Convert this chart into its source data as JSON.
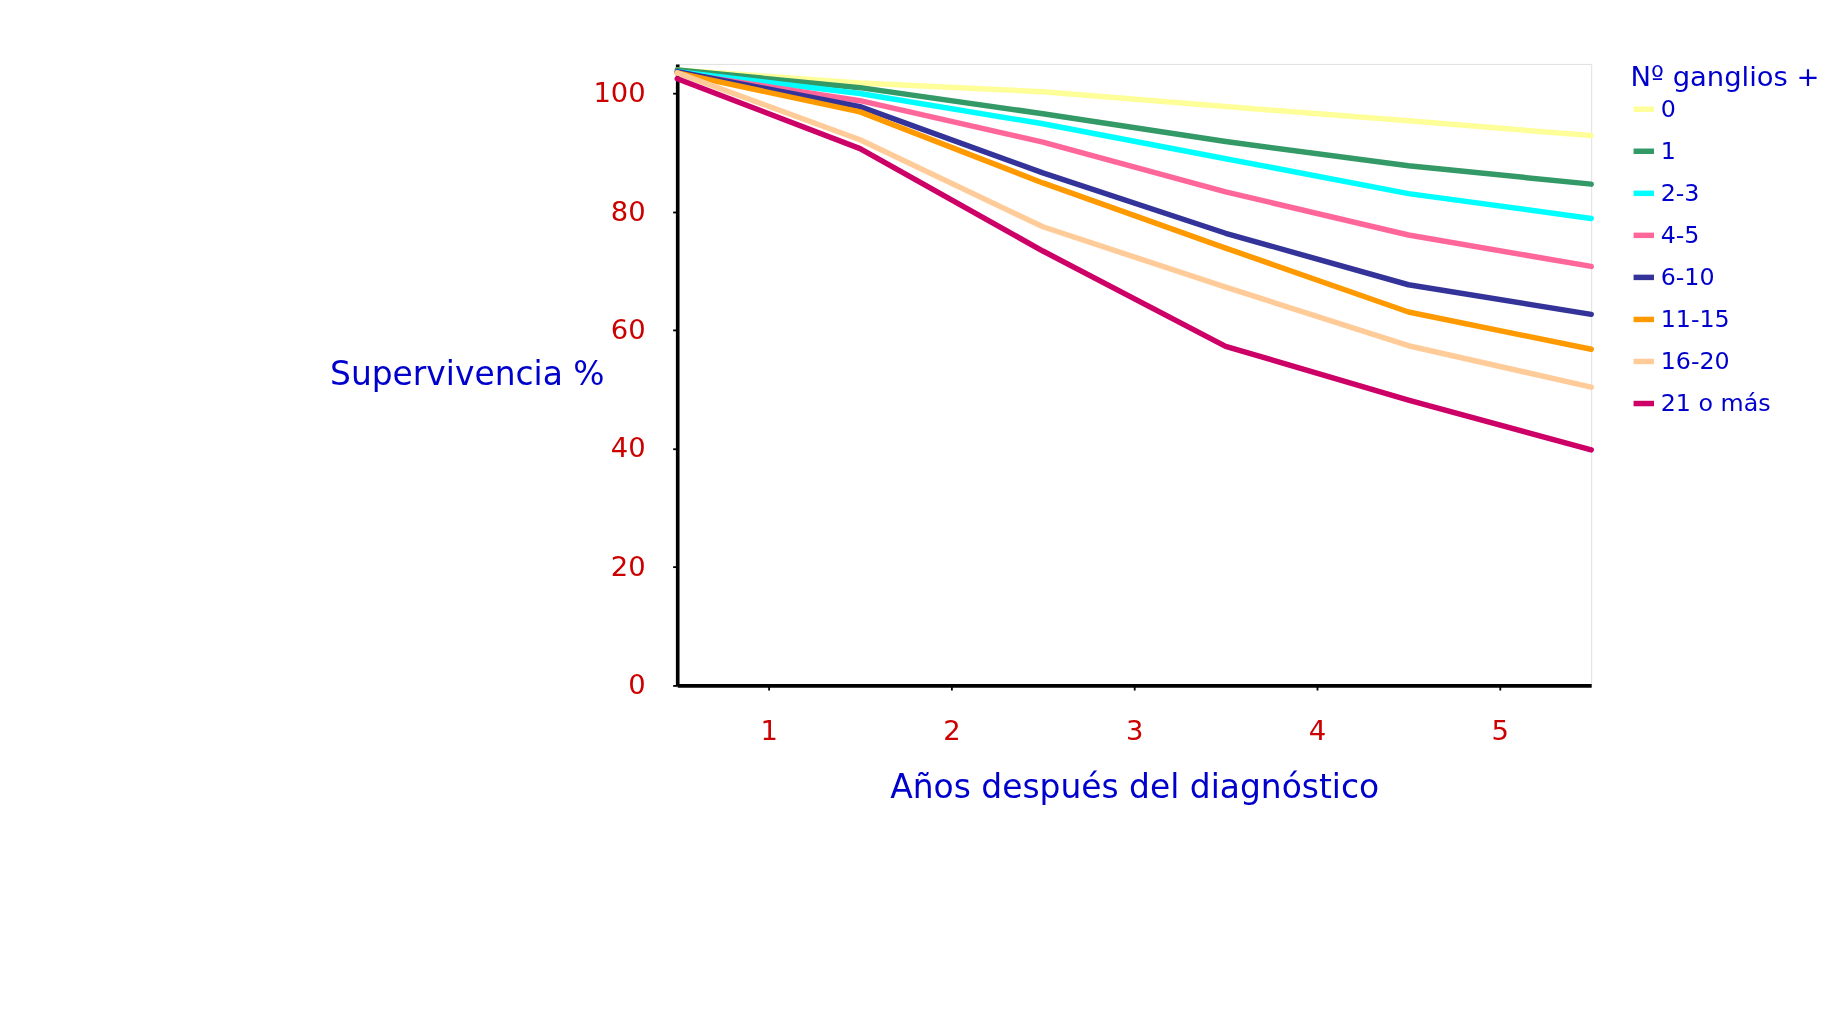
{
  "chart_data": {
    "type": "line",
    "xlabel": "Años después del  diagnóstico",
    "ylabel": "Supervivencia %",
    "legend_title": "Nº ganglios +",
    "legend": "right",
    "grid": false,
    "marker": "none",
    "line_style": "solid",
    "x": [
      0,
      1,
      2,
      3,
      4,
      5
    ],
    "xlim": [
      0,
      5
    ],
    "xticks": [
      {
        "value": 0.5,
        "label": "1"
      },
      {
        "value": 1.5,
        "label": "2"
      },
      {
        "value": 2.5,
        "label": "3"
      },
      {
        "value": 3.5,
        "label": "4"
      },
      {
        "value": 4.5,
        "label": "5"
      }
    ],
    "ylim": [
      0,
      105
    ],
    "yticks": [
      0,
      20,
      40,
      60,
      80,
      100
    ],
    "series": [
      {
        "name": "0",
        "color": "#ffff99",
        "values": [
          104,
          101.8,
          100.3,
          97.8,
          95.4,
          92.9
        ]
      },
      {
        "name": "1",
        "color": "#339966",
        "values": [
          104,
          101,
          96.6,
          91.9,
          87.8,
          84.7
        ]
      },
      {
        "name": "2-3",
        "color": "#00ffff",
        "values": [
          103.7,
          100,
          94.9,
          89,
          83.1,
          78.9
        ]
      },
      {
        "name": "4-5",
        "color": "#ff6699",
        "values": [
          103.5,
          98.8,
          91.8,
          83.4,
          76.1,
          70.8
        ]
      },
      {
        "name": "6-10",
        "color": "#333399",
        "values": [
          103.7,
          97.8,
          86.6,
          76.4,
          67.7,
          62.7
        ]
      },
      {
        "name": "11-15",
        "color": "#ff9900",
        "values": [
          103.5,
          96.9,
          84.9,
          73.9,
          63.1,
          56.8
        ]
      },
      {
        "name": "16-20",
        "color": "#ffcc99",
        "values": [
          103.5,
          92.2,
          77.5,
          67.3,
          57.4,
          50.4
        ]
      },
      {
        "name": "21 o más",
        "color": "#cc0066",
        "values": [
          102.5,
          90.7,
          73.4,
          57.3,
          48.2,
          39.8
        ]
      }
    ]
  }
}
